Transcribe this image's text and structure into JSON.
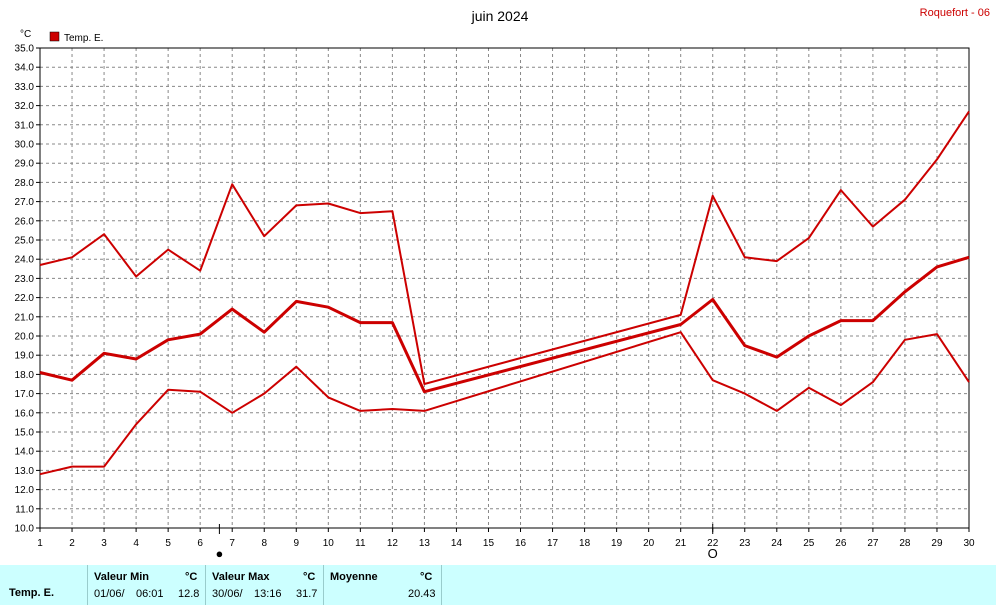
{
  "title": "juin 2024",
  "station": "Roquefort - 06",
  "chart_data": {
    "type": "line",
    "unit": "°C",
    "legend": "Temp. E.",
    "x": [
      1,
      2,
      3,
      4,
      5,
      6,
      7,
      8,
      9,
      10,
      11,
      12,
      13,
      14,
      15,
      16,
      17,
      18,
      19,
      20,
      21,
      22,
      23,
      24,
      25,
      26,
      27,
      28,
      29,
      30
    ],
    "xlim": [
      1,
      30
    ],
    "ylim": [
      10.0,
      35.0
    ],
    "yticks": [
      "10.0",
      "11.0",
      "12.0",
      "13.0",
      "14.0",
      "15.0",
      "16.0",
      "17.0",
      "18.0",
      "19.0",
      "20.0",
      "21.0",
      "22.0",
      "23.0",
      "24.0",
      "25.0",
      "26.0",
      "27.0",
      "28.0",
      "29.0",
      "30.0",
      "31.0",
      "32.0",
      "33.0",
      "34.0",
      "35.0"
    ],
    "grid": true,
    "color": "#cc0000",
    "series": [
      {
        "kind": "max",
        "points": [
          [
            1,
            23.7
          ],
          [
            2,
            24.1
          ],
          [
            3,
            25.3
          ],
          [
            4,
            23.1
          ],
          [
            5,
            24.5
          ],
          [
            6,
            23.4
          ],
          [
            7,
            27.9
          ],
          [
            8,
            25.2
          ],
          [
            9,
            26.8
          ],
          [
            10,
            26.9
          ],
          [
            11,
            26.4
          ],
          [
            12,
            26.5
          ],
          [
            13,
            17.5
          ],
          [
            21,
            21.1
          ],
          [
            22,
            27.3
          ],
          [
            23,
            24.1
          ],
          [
            24,
            23.9
          ],
          [
            25,
            25.1
          ],
          [
            26,
            27.6
          ],
          [
            27,
            25.7
          ],
          [
            28,
            27.1
          ],
          [
            29,
            29.2
          ],
          [
            30,
            31.7
          ]
        ]
      },
      {
        "kind": "mean",
        "points": [
          [
            1,
            18.1
          ],
          [
            2,
            17.7
          ],
          [
            3,
            19.1
          ],
          [
            4,
            18.8
          ],
          [
            5,
            19.8
          ],
          [
            6,
            20.1
          ],
          [
            7,
            21.4
          ],
          [
            8,
            20.2
          ],
          [
            9,
            21.8
          ],
          [
            10,
            21.5
          ],
          [
            11,
            20.7
          ],
          [
            12,
            20.7
          ],
          [
            13,
            17.1
          ],
          [
            21,
            20.6
          ],
          [
            22,
            21.9
          ],
          [
            23,
            19.5
          ],
          [
            24,
            18.9
          ],
          [
            25,
            20.0
          ],
          [
            26,
            20.8
          ],
          [
            27,
            20.8
          ],
          [
            28,
            22.3
          ],
          [
            29,
            23.6
          ],
          [
            30,
            24.1
          ]
        ]
      },
      {
        "kind": "min",
        "points": [
          [
            1,
            12.8
          ],
          [
            2,
            13.2
          ],
          [
            3,
            13.2
          ],
          [
            4,
            15.4
          ],
          [
            5,
            17.2
          ],
          [
            6,
            17.1
          ],
          [
            7,
            16.0
          ],
          [
            8,
            17.0
          ],
          [
            9,
            18.4
          ],
          [
            10,
            16.8
          ],
          [
            11,
            16.1
          ],
          [
            12,
            16.2
          ],
          [
            13,
            16.1
          ],
          [
            21,
            20.2
          ],
          [
            22,
            17.7
          ],
          [
            23,
            17.0
          ],
          [
            24,
            16.1
          ],
          [
            25,
            17.3
          ],
          [
            26,
            16.4
          ],
          [
            27,
            17.6
          ],
          [
            28,
            19.8
          ],
          [
            29,
            20.1
          ],
          [
            30,
            17.6
          ]
        ]
      }
    ],
    "moon_phases": [
      {
        "day": 6.6,
        "symbol": "●"
      },
      {
        "day": 22,
        "symbol": "O"
      }
    ]
  },
  "stats": {
    "row_label": "Temp. E.",
    "min": {
      "header": "Valeur Min",
      "unit": "°C",
      "date": "01/06/",
      "time": "06:01",
      "value": "12.8"
    },
    "max": {
      "header": "Valeur Max",
      "unit": "°C",
      "date": "30/06/",
      "time": "13:16",
      "value": "31.7"
    },
    "mean": {
      "header": "Moyenne",
      "unit": "°C",
      "value": "20.43"
    }
  }
}
